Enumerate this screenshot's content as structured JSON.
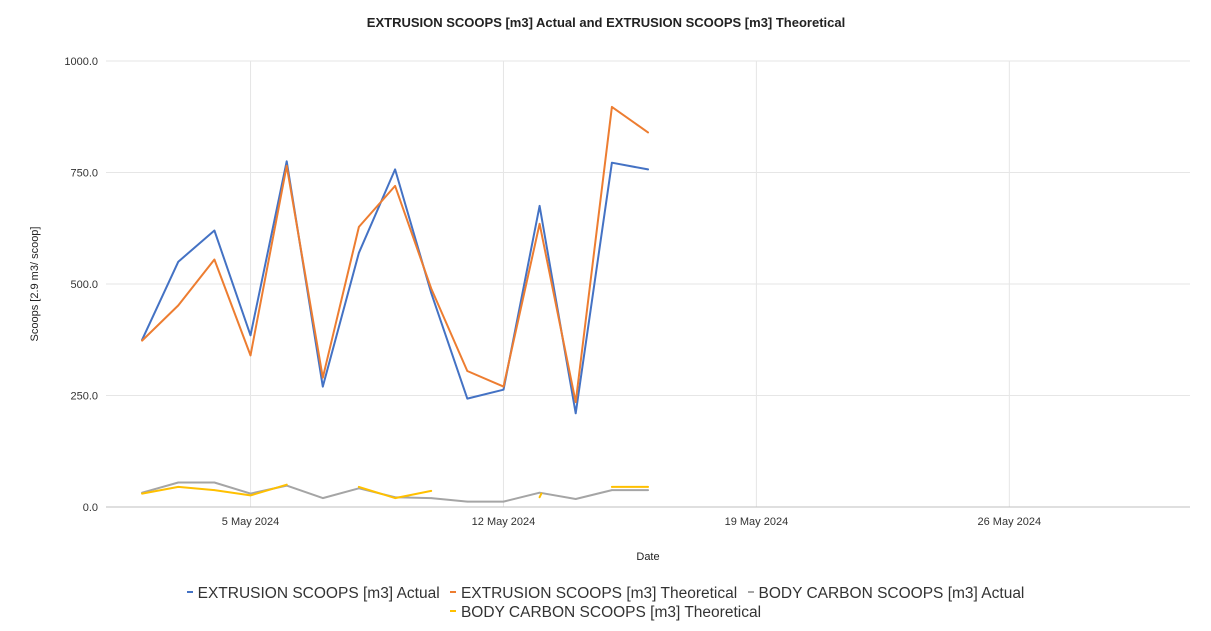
{
  "chart_data": {
    "type": "line",
    "title": "EXTRUSION SCOOPS [m3] Actual and EXTRUSION SCOOPS [m3] Theoretical",
    "xlabel": "Date",
    "ylabel": "Scoops [2.9 m3/ scoop]",
    "ylim": [
      0,
      1000
    ],
    "yticks": [
      "0.0",
      "250.0",
      "500.0",
      "750.0",
      "1000.0"
    ],
    "xlim_day": [
      1,
      31
    ],
    "xticks": [
      {
        "day": 5,
        "label": "5 May 2024"
      },
      {
        "day": 12,
        "label": "12 May 2024"
      },
      {
        "day": 19,
        "label": "19 May 2024"
      },
      {
        "day": 26,
        "label": "26 May 2024"
      }
    ],
    "grid": true,
    "legend_position": "bottom",
    "series": [
      {
        "name": "EXTRUSION SCOOPS [m3] Actual",
        "color": "#4472C4",
        "points": [
          [
            2,
            375
          ],
          [
            3,
            550
          ],
          [
            4,
            620
          ],
          [
            5,
            385
          ],
          [
            6,
            775
          ],
          [
            7,
            270
          ],
          [
            8,
            570
          ],
          [
            9,
            757
          ],
          [
            10,
            480
          ],
          [
            11,
            243
          ],
          [
            12,
            263
          ],
          [
            13,
            675
          ],
          [
            14,
            210
          ],
          [
            15,
            772
          ],
          [
            16,
            757
          ]
        ]
      },
      {
        "name": "EXTRUSION SCOOPS [m3] Theoretical",
        "color": "#ED7D31",
        "points": [
          [
            2,
            373
          ],
          [
            3,
            452
          ],
          [
            4,
            555
          ],
          [
            5,
            340
          ],
          [
            6,
            765
          ],
          [
            7,
            290
          ],
          [
            8,
            628
          ],
          [
            9,
            720
          ],
          [
            10,
            490
          ],
          [
            11,
            305
          ],
          [
            12,
            270
          ],
          [
            13,
            635
          ],
          [
            14,
            235
          ],
          [
            15,
            897
          ],
          [
            16,
            840
          ]
        ]
      },
      {
        "name": "BODY CARBON SCOOPS [m3] Actual",
        "color": "#A5A5A5",
        "points": [
          [
            2,
            32
          ],
          [
            3,
            55
          ],
          [
            4,
            55
          ],
          [
            5,
            30
          ],
          [
            6,
            48
          ],
          [
            7,
            20
          ],
          [
            8,
            42
          ],
          [
            9,
            22
          ],
          [
            10,
            20
          ],
          [
            11,
            12
          ],
          [
            12,
            12
          ],
          [
            13,
            32
          ],
          [
            14,
            18
          ],
          [
            15,
            38
          ],
          [
            16,
            38
          ]
        ]
      },
      {
        "name": "BODY CARBON SCOOPS [m3] Theoretical",
        "color": "#FFC000",
        "segments": [
          [
            [
              2,
              30
            ],
            [
              3,
              45
            ],
            [
              4,
              38
            ],
            [
              5,
              26
            ],
            [
              6,
              50
            ]
          ],
          [
            [
              8,
              45
            ],
            [
              9,
              20
            ],
            [
              10,
              36
            ]
          ],
          [
            [
              13,
              22
            ],
            [
              13.05,
              30
            ]
          ],
          [
            [
              15,
              45
            ],
            [
              16,
              45
            ]
          ]
        ]
      }
    ]
  }
}
